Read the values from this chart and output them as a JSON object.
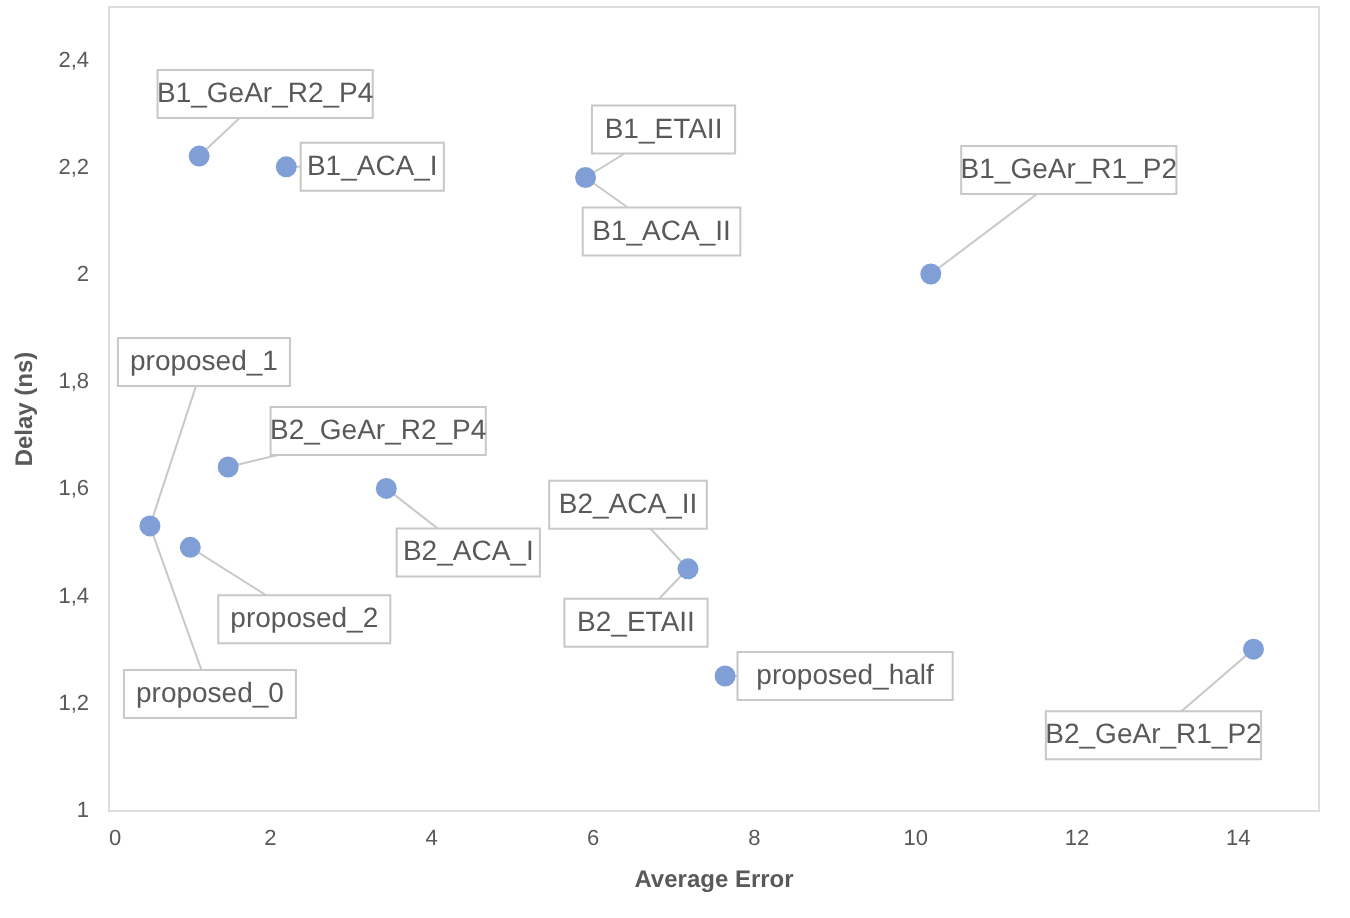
{
  "chart_data": {
    "type": "scatter",
    "xlabel": "Average Error",
    "ylabel": "Delay (ns)",
    "xlim": [
      0,
      15
    ],
    "xticks": [
      0,
      2,
      4,
      6,
      8,
      10,
      12,
      14
    ],
    "ylim": [
      1,
      2.5
    ],
    "yticks": [
      1,
      {
        "value": 1.2,
        "label": "1,2"
      },
      {
        "value": 1.4,
        "label": "1,4"
      },
      {
        "value": 1.6,
        "label": "1,6"
      },
      {
        "value": 1.8,
        "label": "1,8"
      },
      2,
      {
        "value": 2.2,
        "label": "2,2"
      },
      {
        "value": 2.4,
        "label": "2,4"
      }
    ],
    "grid": false,
    "marker": "circle",
    "series": [
      {
        "color": "#7f9fd6",
        "x": [
          1.13,
          2.21,
          5.92,
          10.2,
          0.52,
          1.49,
          3.45,
          1.02,
          7.19,
          7.65,
          14.2
        ],
        "values": [
          2.22,
          2.2,
          2.18,
          2.0,
          1.53,
          1.64,
          1.6,
          1.49,
          1.45,
          1.25,
          1.3
        ]
      }
    ],
    "annotations": [
      {
        "text": "B1_GeAr_R2_P4",
        "x": 1.13,
        "y": 2.22
      },
      {
        "text": "B1_ACA_I",
        "x": 2.21,
        "y": 2.2
      },
      {
        "text": "B1_ETAII",
        "x": 5.92,
        "y": 2.18
      },
      {
        "text": "B1_ACA_II",
        "x": 5.92,
        "y": 2.18
      },
      {
        "text": "B1_GeAr_R1_P2",
        "x": 10.2,
        "y": 2.0
      },
      {
        "text": "proposed_1",
        "x": 0.52,
        "y": 1.53
      },
      {
        "text": "proposed_0",
        "x": 0.52,
        "y": 1.53
      },
      {
        "text": "B2_GeAr_R2_P4",
        "x": 1.49,
        "y": 1.64
      },
      {
        "text": "B2_ACA_I",
        "x": 3.45,
        "y": 1.6
      },
      {
        "text": "proposed_2",
        "x": 1.02,
        "y": 1.49
      },
      {
        "text": "B2_ACA_II",
        "x": 7.19,
        "y": 1.45
      },
      {
        "text": "B2_ETAII",
        "x": 7.19,
        "y": 1.45
      },
      {
        "text": "proposed_half",
        "x": 7.65,
        "y": 1.25
      },
      {
        "text": "B2_GeAr_R1_P2",
        "x": 14.2,
        "y": 1.3
      }
    ]
  }
}
